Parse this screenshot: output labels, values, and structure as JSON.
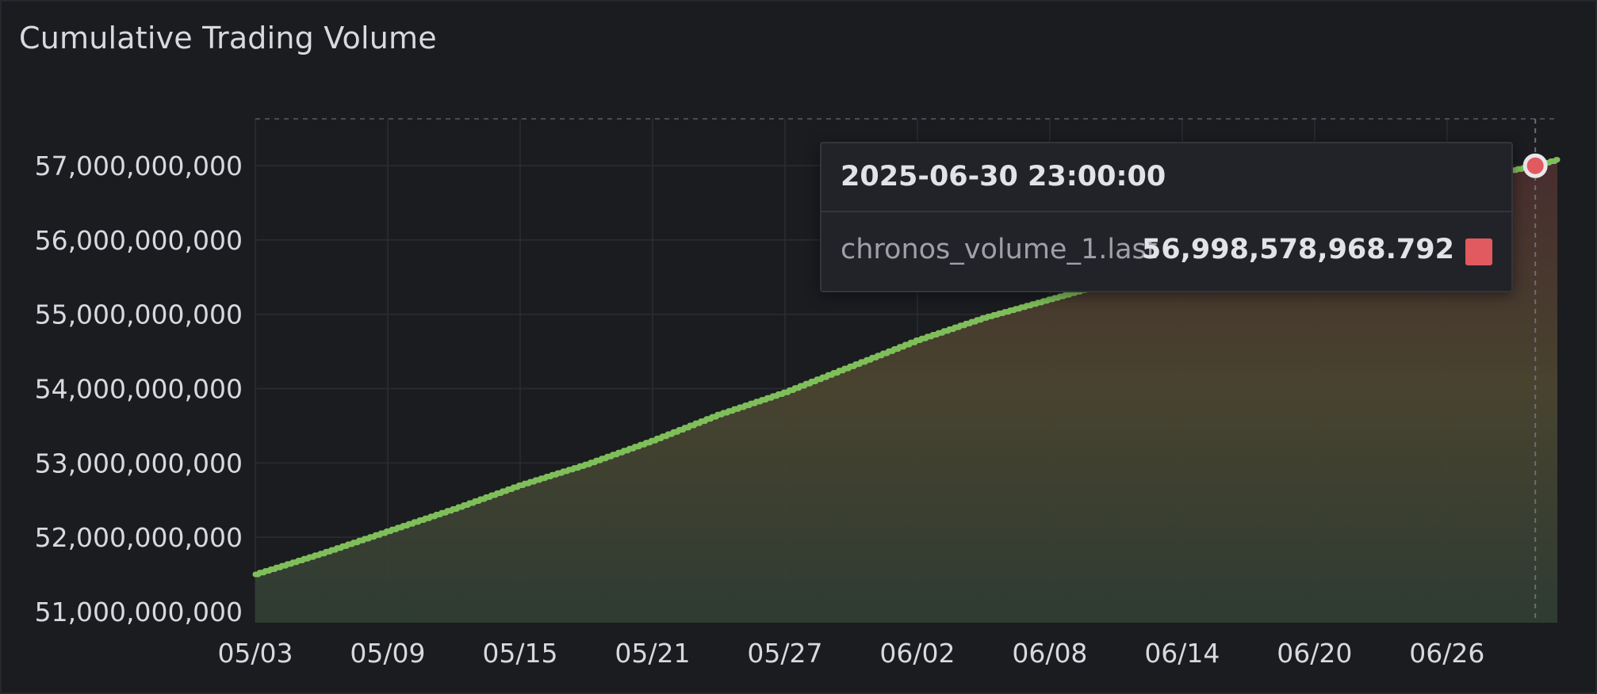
{
  "panel": {
    "title": "Cumulative Trading Volume"
  },
  "tooltip": {
    "time": "2025-06-30 23:00:00",
    "series": "chronos_volume_1.last",
    "value": "56,998,578,968.792",
    "swatch_color": "#e05a5f"
  },
  "chart_data": {
    "type": "area",
    "series": [
      {
        "name": "chronos_volume_1.last",
        "x": [
          "05/03",
          "05/06",
          "05/09",
          "05/12",
          "05/15",
          "05/18",
          "05/21",
          "05/24",
          "05/27",
          "05/30",
          "06/02",
          "06/05",
          "06/08",
          "06/11",
          "06/14",
          "06/17",
          "06/20",
          "06/23",
          "06/26",
          "06/29",
          "06/30",
          "07/01"
        ],
        "values": [
          51500000000,
          51780000000,
          52080000000,
          52380000000,
          52700000000,
          52980000000,
          53300000000,
          53650000000,
          53950000000,
          54300000000,
          54650000000,
          54950000000,
          55200000000,
          55450000000,
          55700000000,
          55950000000,
          56200000000,
          56450000000,
          56700000000,
          56940000000,
          56998578968.792,
          57080000000
        ]
      }
    ],
    "x_ticks": [
      "05/03",
      "05/09",
      "05/15",
      "05/21",
      "05/27",
      "06/02",
      "06/08",
      "06/14",
      "06/20",
      "06/26"
    ],
    "y_ticks": [
      51000000000,
      52000000000,
      53000000000,
      54000000000,
      55000000000,
      56000000000,
      57000000000
    ],
    "y_tick_labels": [
      "51,000,000,000",
      "52,000,000,000",
      "53,000,000,000",
      "54,000,000,000",
      "55,000,000,000",
      "56,000,000,000",
      "57,000,000,000"
    ],
    "ylim": [
      50850000000,
      57630000000
    ],
    "x_range": [
      "05/03",
      "07/01"
    ],
    "hover_x": "06/30",
    "grid": true,
    "gradient_colors": [
      "#7fbf5a",
      "#e8d44a",
      "#e8a23a",
      "#e05a5f"
    ],
    "axis_text_color": "#d8d9de"
  }
}
